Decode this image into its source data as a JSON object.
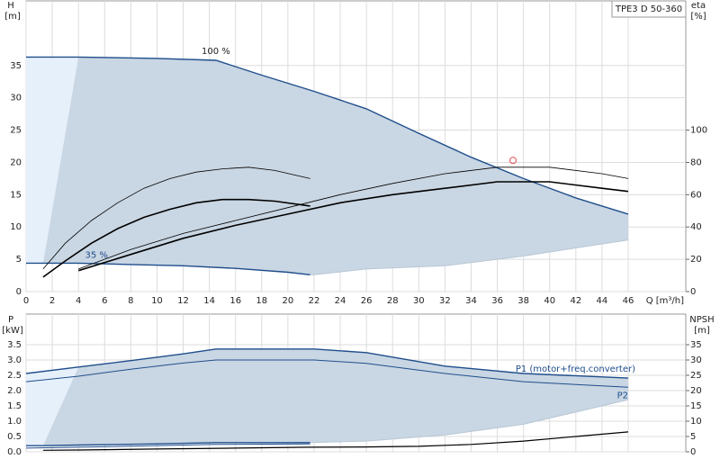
{
  "chart_data": [
    {
      "type": "line",
      "ylabel": "H",
      "yunit": "[m]",
      "y2label": "eta",
      "y2unit": "[%]",
      "xlabel": "Q [m³/h]",
      "label": "TPE3 D 50-360",
      "xlim": [
        0,
        50.4
      ],
      "xticks": [
        0,
        2,
        4,
        6,
        8,
        10,
        12,
        14,
        16,
        18,
        20,
        22,
        24,
        26,
        28,
        30,
        32,
        34,
        36,
        38,
        40,
        42,
        44,
        46
      ],
      "ylim": [
        0,
        45
      ],
      "yticks": [
        0,
        5,
        10,
        15,
        20,
        25,
        30,
        35
      ],
      "y2lim": [
        0,
        180
      ],
      "y2ticks": [
        0,
        20,
        40,
        60,
        80,
        100
      ],
      "grid": true,
      "region_color": "#c9d6e3",
      "edge_color": "#e6f0fb",
      "series": [
        {
          "name": "100 %",
          "color": "#1f4e8c",
          "line_width": 1.4,
          "x": [
            0,
            4,
            10,
            14.5,
            18,
            22,
            26,
            30,
            34,
            38,
            42,
            46
          ],
          "values": [
            36.3,
            36.3,
            36.1,
            35.8,
            33.5,
            31,
            28.3,
            24.5,
            20.8,
            17.5,
            14.5,
            12
          ]
        },
        {
          "name": "35 %",
          "color": "#1f4e8c",
          "line_width": 1.4,
          "x": [
            0,
            1.3,
            4,
            8,
            12,
            16,
            20,
            21.7
          ],
          "values": [
            4.4,
            4.4,
            4.4,
            4.2,
            4,
            3.6,
            3,
            2.6
          ]
        },
        {
          "color": "#000000",
          "line_width": 0.8,
          "axis": "y2",
          "x": [
            4,
            8,
            12,
            16,
            20,
            24,
            28,
            32,
            36,
            40,
            44,
            46
          ],
          "values": [
            14,
            26,
            36,
            44,
            52,
            60,
            67,
            73,
            77,
            77,
            73,
            70
          ]
        },
        {
          "color": "#000000",
          "line_width": 1.6,
          "axis": "y2",
          "x": [
            4,
            8,
            12,
            16,
            20,
            24,
            28,
            32,
            36,
            40,
            44,
            46
          ],
          "values": [
            13,
            23,
            33,
            41,
            48,
            55,
            60,
            64,
            68,
            68,
            64,
            62
          ]
        },
        {
          "color": "#000000",
          "line_width": 0.8,
          "axis": "y2",
          "x": [
            1.3,
            3,
            5,
            7,
            9,
            11,
            13,
            15,
            17,
            19,
            21.7
          ],
          "values": [
            14,
            30,
            44,
            55,
            64,
            70,
            74,
            76,
            77,
            75,
            70
          ]
        },
        {
          "color": "#000000",
          "line_width": 1.6,
          "axis": "y2",
          "x": [
            1.3,
            3,
            5,
            7,
            9,
            11,
            13,
            15,
            17,
            19,
            21.7
          ],
          "values": [
            9,
            19,
            30,
            39,
            46,
            51,
            55,
            57,
            57,
            56,
            53
          ]
        }
      ],
      "lower_boundary": {
        "x": [
          21.7,
          22,
          26,
          32,
          38,
          46
        ],
        "values": [
          2.6,
          2.6,
          3.5,
          4,
          5.5,
          8
        ]
      },
      "duty_point": {
        "x": 37.2,
        "y": 20.3,
        "color": "#e05050"
      }
    },
    {
      "type": "line",
      "ylabel": "P",
      "yunit": "[kW]",
      "y2label": "NPSH",
      "y2unit": "[m]",
      "xlim": [
        0,
        50.4
      ],
      "ylim": [
        0,
        4.5
      ],
      "yticks": [
        {
          "value": 0,
          "label": "0.0"
        },
        0.5,
        {
          "value": 1,
          "label": "1.0"
        },
        1.5,
        {
          "value": 2,
          "label": "2.0"
        },
        2.5,
        {
          "value": 3,
          "label": "3.0"
        },
        3.5
      ],
      "y2lim": [
        0,
        45
      ],
      "y2ticks": [
        0,
        5,
        10,
        15,
        20,
        25,
        30,
        35
      ],
      "grid": true,
      "region_color": "#c9d6e3",
      "edge_color": "#e6f0fb",
      "series": [
        {
          "name": "P1 (motor+freq.converter)",
          "color": "#1f4e8c",
          "line_width": 1.4,
          "x": [
            0,
            4,
            8,
            12,
            14.5,
            18,
            22,
            26,
            32,
            38,
            46
          ],
          "values": [
            2.56,
            2.77,
            2.98,
            3.2,
            3.36,
            3.36,
            3.36,
            3.24,
            2.8,
            2.56,
            2.41
          ]
        },
        {
          "color": "#1f4e8c",
          "line_width": 1.4,
          "x": [
            0,
            1.3,
            4,
            10,
            14.5,
            21.7
          ],
          "values": [
            0.2,
            0.2,
            0.22,
            0.26,
            0.3,
            0.3
          ]
        },
        {
          "name": "P2",
          "color": "#1f4e8c",
          "line_width": 1,
          "x": [
            0,
            4,
            8,
            12,
            14.5,
            18,
            22,
            26,
            32,
            38,
            46
          ],
          "values": [
            2.29,
            2.47,
            2.7,
            2.9,
            3,
            3,
            3,
            2.89,
            2.56,
            2.29,
            2.11
          ]
        },
        {
          "color": "#1f4e8c",
          "line_width": 1,
          "x": [
            0,
            4,
            14.5,
            21.7
          ],
          "values": [
            0.12,
            0.15,
            0.24,
            0.26
          ]
        },
        {
          "color": "#000000",
          "line_width": 1.2,
          "axis": "y2",
          "x": [
            1.3,
            4,
            10,
            16,
            21.7,
            26,
            30,
            34,
            38,
            42,
            46
          ],
          "values": [
            0.5,
            0.6,
            0.9,
            1.2,
            1.5,
            1.6,
            1.8,
            2.4,
            3.5,
            5,
            6.5
          ]
        }
      ],
      "lower_boundary": {
        "x": [
          21.7,
          26,
          32,
          38,
          46
        ],
        "values": [
          0.3,
          0.35,
          0.55,
          0.9,
          1.7
        ]
      }
    }
  ]
}
